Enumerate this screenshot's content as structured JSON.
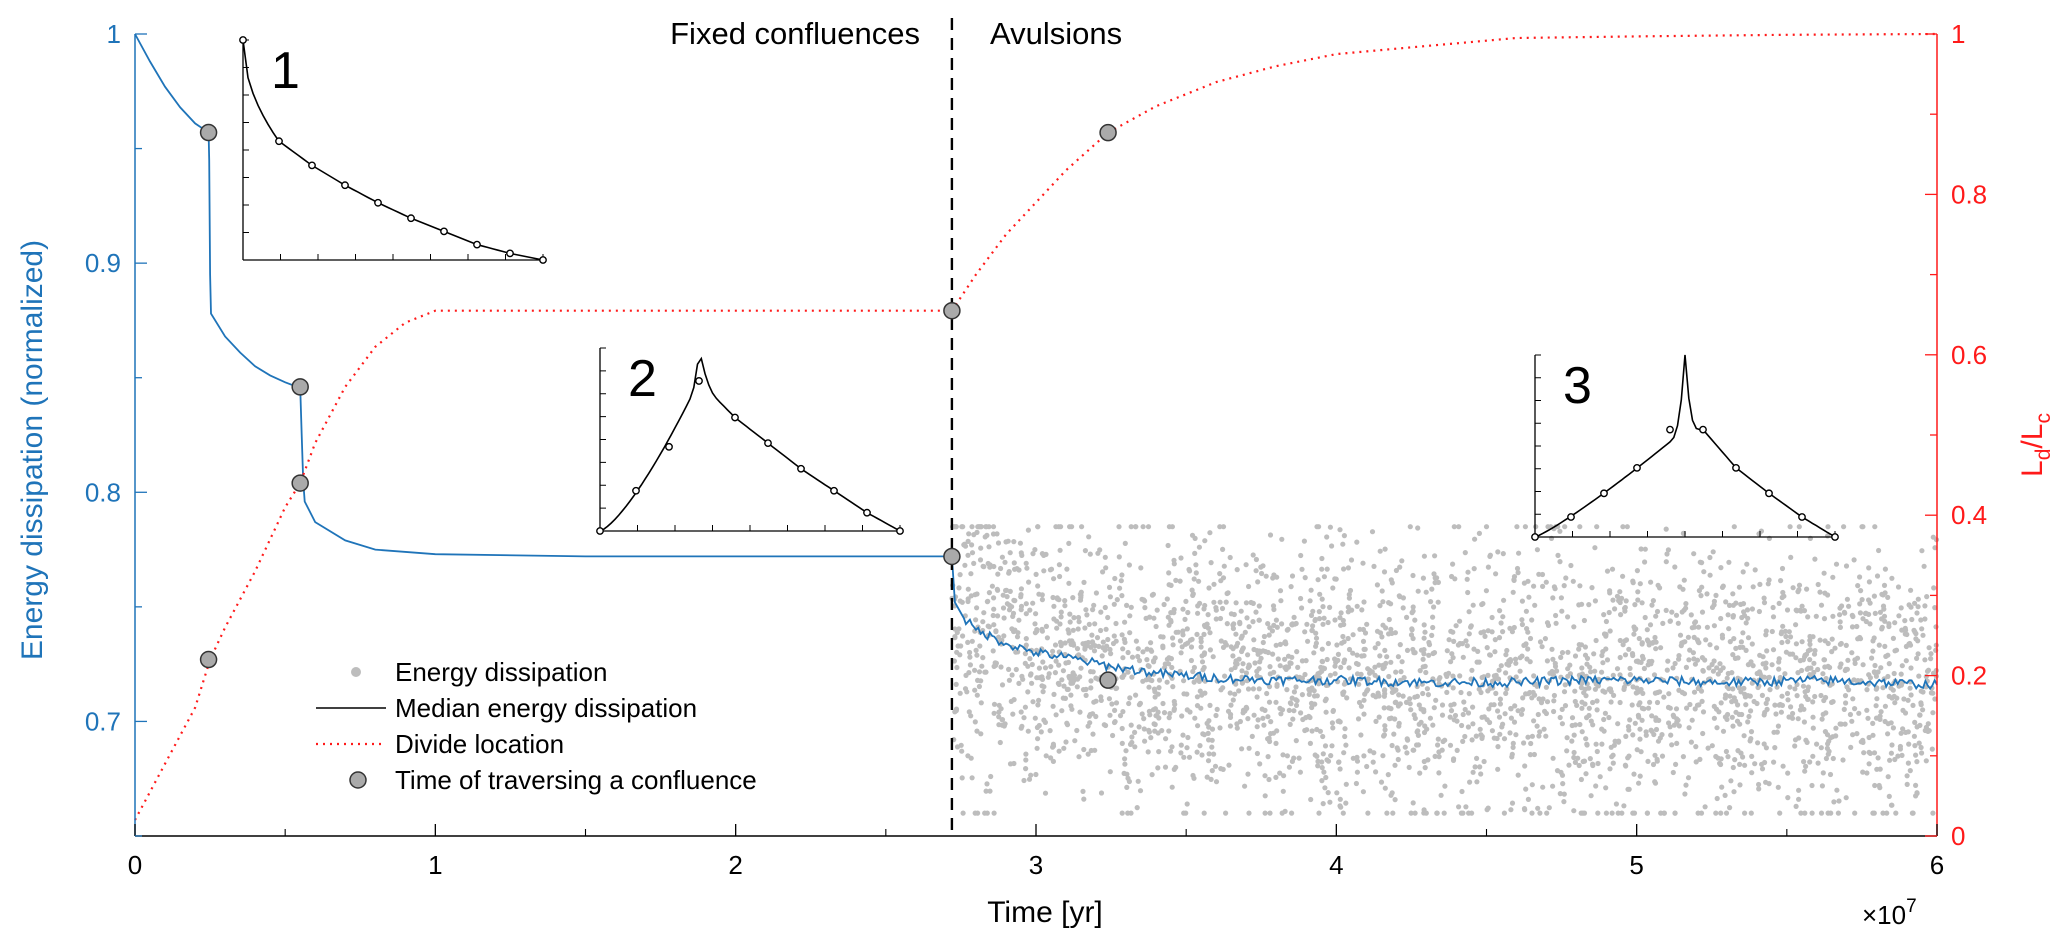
{
  "chart_data": {
    "type": "line",
    "xlabel": "Time [yr]",
    "x_exponent_label": "×10",
    "x_exponent_power": "7",
    "ylabel_left": "Energy dissipation (normalized)",
    "ylabel_right_main": "L",
    "ylabel_right_sub1": "d",
    "ylabel_right_slash": "/L",
    "ylabel_right_sub2": "c",
    "xlim": [
      0,
      6
    ],
    "ylim_left": [
      0.65,
      1.0
    ],
    "ylim_right": [
      0,
      1
    ],
    "x_ticks": [
      "0",
      "1",
      "2",
      "3",
      "4",
      "5",
      "6"
    ],
    "y_left_ticks": [
      "0.7",
      "0.8",
      "0.9",
      "1"
    ],
    "y_right_ticks": [
      "0",
      "0.2",
      "0.4",
      "0.6",
      "0.8",
      "1"
    ],
    "grid": false,
    "legend_position": "bottom-left",
    "colors": {
      "left_axis": "#1f74b9",
      "right_axis": "#ff1a1a",
      "scatter": "#bdbdbd",
      "median": "#1f74b9",
      "divide": "#ff1a1a",
      "marker_fill": "#aaaaaa"
    },
    "regions": [
      {
        "label": "Fixed confluences"
      },
      {
        "label": "Avulsions"
      }
    ],
    "region_boundary_x": 2.72,
    "series": [
      {
        "name": "Median energy dissipation",
        "axis": "left",
        "style": "solid",
        "points": [
          [
            0,
            1.0
          ],
          [
            0.05,
            0.988
          ],
          [
            0.1,
            0.977
          ],
          [
            0.15,
            0.968
          ],
          [
            0.2,
            0.961
          ],
          [
            0.245,
            0.957
          ],
          [
            0.247,
            0.945
          ],
          [
            0.25,
            0.895
          ],
          [
            0.253,
            0.878
          ],
          [
            0.3,
            0.868
          ],
          [
            0.35,
            0.861
          ],
          [
            0.4,
            0.855
          ],
          [
            0.45,
            0.851
          ],
          [
            0.5,
            0.848
          ],
          [
            0.54,
            0.846
          ],
          [
            0.55,
            0.846
          ],
          [
            0.555,
            0.825
          ],
          [
            0.56,
            0.805
          ],
          [
            0.565,
            0.796
          ],
          [
            0.6,
            0.787
          ],
          [
            0.7,
            0.779
          ],
          [
            0.8,
            0.775
          ],
          [
            1.0,
            0.773
          ],
          [
            1.5,
            0.772
          ],
          [
            2.0,
            0.772
          ],
          [
            2.72,
            0.772
          ],
          [
            2.73,
            0.752
          ],
          [
            2.76,
            0.745
          ],
          [
            2.8,
            0.74
          ],
          [
            2.9,
            0.734
          ],
          [
            3.0,
            0.73
          ],
          [
            3.1,
            0.728
          ],
          [
            3.25,
            0.724
          ],
          [
            3.4,
            0.721
          ],
          [
            3.6,
            0.719
          ],
          [
            3.8,
            0.718
          ],
          [
            4.0,
            0.718
          ],
          [
            4.3,
            0.717
          ],
          [
            4.6,
            0.717
          ],
          [
            4.8,
            0.718
          ],
          [
            5.0,
            0.718
          ],
          [
            5.3,
            0.717
          ],
          [
            5.6,
            0.718
          ],
          [
            5.8,
            0.717
          ],
          [
            6.0,
            0.716
          ]
        ]
      },
      {
        "name": "Divide location",
        "axis": "right",
        "style": "dotted",
        "points": [
          [
            0,
            0.02
          ],
          [
            0.1,
            0.09
          ],
          [
            0.2,
            0.16
          ],
          [
            0.25,
            0.22
          ],
          [
            0.3,
            0.26
          ],
          [
            0.4,
            0.33
          ],
          [
            0.5,
            0.41
          ],
          [
            0.55,
            0.44
          ],
          [
            0.6,
            0.49
          ],
          [
            0.7,
            0.56
          ],
          [
            0.8,
            0.61
          ],
          [
            0.9,
            0.64
          ],
          [
            1.0,
            0.655
          ],
          [
            1.2,
            0.655
          ],
          [
            1.5,
            0.655
          ],
          [
            2.0,
            0.655
          ],
          [
            2.5,
            0.655
          ],
          [
            2.72,
            0.655
          ],
          [
            2.8,
            0.7
          ],
          [
            2.9,
            0.75
          ],
          [
            3.0,
            0.79
          ],
          [
            3.1,
            0.83
          ],
          [
            3.24,
            0.877
          ],
          [
            3.4,
            0.91
          ],
          [
            3.6,
            0.94
          ],
          [
            3.8,
            0.96
          ],
          [
            4.0,
            0.975
          ],
          [
            4.3,
            0.985
          ],
          [
            4.6,
            0.995
          ],
          [
            5.0,
            0.997
          ],
          [
            5.5,
            0.999
          ],
          [
            6.0,
            1.0
          ]
        ]
      },
      {
        "name": "Time of traversing a confluence",
        "type": "markers",
        "points": [
          {
            "x": 0.245,
            "y": 0.957,
            "axis": "left"
          },
          {
            "x": 0.55,
            "y": 0.846,
            "axis": "left"
          },
          {
            "x": 2.72,
            "y": 0.772,
            "axis": "left"
          },
          {
            "x": 3.24,
            "y": 0.718,
            "axis": "left"
          },
          {
            "x": 0.245,
            "y": 0.22,
            "axis": "right"
          },
          {
            "x": 0.55,
            "y": 0.44,
            "axis": "right"
          },
          {
            "x": 2.72,
            "y": 0.655,
            "axis": "right"
          },
          {
            "x": 3.24,
            "y": 0.877,
            "axis": "right"
          }
        ]
      },
      {
        "name": "Energy dissipation",
        "type": "scatter",
        "axis": "left",
        "x_range": [
          2.72,
          6.0
        ],
        "y_center": 0.718,
        "y_spread": 0.03,
        "y_extremes": [
          0.66,
          0.785
        ],
        "count": 3000
      }
    ],
    "legend": [
      {
        "name": "Energy dissipation",
        "symbol": "dot"
      },
      {
        "name": "Median energy dissipation",
        "symbol": "line"
      },
      {
        "name": "Divide location",
        "symbol": "dotted"
      },
      {
        "name": "Time of traversing a confluence",
        "symbol": "circle"
      }
    ],
    "insets": [
      {
        "label": "1",
        "markers": [
          [
            0,
            1.0
          ],
          [
            0.12,
            0.54
          ],
          [
            0.23,
            0.43
          ],
          [
            0.34,
            0.34
          ],
          [
            0.45,
            0.26
          ],
          [
            0.56,
            0.19
          ],
          [
            0.67,
            0.13
          ],
          [
            0.78,
            0.07
          ],
          [
            0.89,
            0.03
          ],
          [
            1.0,
            0.0
          ]
        ]
      },
      {
        "label": "2",
        "peak": 0.33,
        "markers": [
          [
            0,
            0
          ],
          [
            0.12,
            0.22
          ],
          [
            0.23,
            0.46
          ],
          [
            0.33,
            0.82
          ],
          [
            0.45,
            0.62
          ],
          [
            0.56,
            0.48
          ],
          [
            0.67,
            0.34
          ],
          [
            0.78,
            0.22
          ],
          [
            0.89,
            0.1
          ],
          [
            1.0,
            0.0
          ]
        ]
      },
      {
        "label": "3",
        "peak": 0.5,
        "markers": [
          [
            0,
            0
          ],
          [
            0.12,
            0.11
          ],
          [
            0.23,
            0.24
          ],
          [
            0.34,
            0.38
          ],
          [
            0.45,
            0.59
          ],
          [
            0.56,
            0.59
          ],
          [
            0.67,
            0.38
          ],
          [
            0.78,
            0.24
          ],
          [
            0.89,
            0.11
          ],
          [
            1.0,
            0.0
          ]
        ]
      }
    ]
  }
}
